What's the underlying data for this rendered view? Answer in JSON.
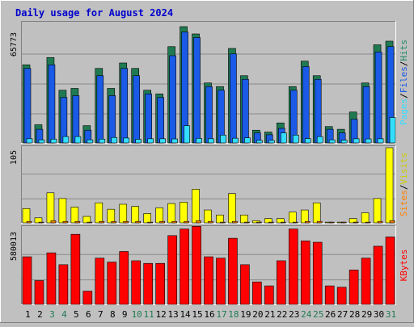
{
  "chart_data": {
    "type": "bar",
    "title": "Daily usage for August 2024",
    "categories": [
      "1",
      "2",
      "3",
      "4",
      "5",
      "6",
      "7",
      "8",
      "9",
      "10",
      "11",
      "12",
      "13",
      "14",
      "15",
      "16",
      "17",
      "18",
      "19",
      "20",
      "21",
      "22",
      "23",
      "24",
      "25",
      "26",
      "27",
      "28",
      "29",
      "30",
      "31"
    ],
    "weekend_days": [
      "3",
      "4",
      "10",
      "11",
      "17",
      "18",
      "24",
      "25",
      "31"
    ],
    "panels": {
      "hits": {
        "max_label": "65773",
        "ymax": 65773,
        "axis_labels": [
          "Pages",
          "/",
          "Files",
          "/",
          "Hits"
        ],
        "series": [
          {
            "name": "Hits",
            "color": "#1f7a52",
            "values": [
              43000,
              10000,
              47000,
              29000,
              30000,
              9500,
              41000,
              30000,
              44000,
              41000,
              29000,
              27000,
              53000,
              64000,
              60000,
              33000,
              31000,
              52000,
              37000,
              7000,
              6000,
              11000,
              31000,
              45000,
              37000,
              9000,
              7500,
              17000,
              33000,
              54000,
              56000
            ]
          },
          {
            "name": "Files",
            "color": "#1a5ae6",
            "values": [
              41000,
              7500,
              43000,
              25000,
              26000,
              7000,
              37000,
              26000,
              41000,
              37000,
              27000,
              25000,
              48000,
              61000,
              58000,
              31000,
              29000,
              49000,
              35000,
              5500,
              4500,
              8000,
              29000,
              42000,
              35000,
              7500,
              5500,
              13000,
              31000,
              50000,
              53000
            ]
          },
          {
            "name": "Pages",
            "color": "#33ddff",
            "values": [
              2300,
              1700,
              2100,
              3500,
              3500,
              1700,
              2100,
              3000,
              2700,
              2000,
              2300,
              2300,
              2200,
              9500,
              2500,
              2300,
              4300,
              2600,
              2800,
              1400,
              1400,
              5500,
              4300,
              2400,
              3500,
              1700,
              1500,
              2300,
              2200,
              2300,
              14000
            ]
          }
        ]
      },
      "visits": {
        "max_label": "105",
        "ymax": 105,
        "axis_labels": [
          "Sites",
          "/",
          "Visits"
        ],
        "series": [
          {
            "name": "Visits",
            "color": "#ffff00",
            "values": [
              20,
              7,
              42,
              34,
              22,
              9,
              28,
              19,
              26,
              23,
              13,
              21,
              27,
              29,
              47,
              18,
              11,
              41,
              11,
              3,
              6,
              6,
              15,
              18,
              28,
              1,
              1,
              6,
              14,
              34,
              105
            ]
          },
          {
            "name": "Sites",
            "color": "#ff8000",
            "values": [
              2,
              1,
              3,
              2,
              2,
              1,
              2,
              2,
              2,
              2,
              1,
              2,
              2,
              2,
              3,
              2,
              1,
              2,
              1,
              1,
              1,
              1,
              1,
              2,
              2,
              1,
              1,
              1,
              1,
              2,
              3
            ]
          }
        ]
      },
      "kbytes": {
        "max_label": "580013",
        "ymax": 580013,
        "axis_labels": [
          "KBytes"
        ],
        "series": [
          {
            "name": "KBytes",
            "color": "#ff0000",
            "values": [
              360000,
              180000,
              390000,
              300000,
              530000,
              100000,
              350000,
              320000,
              400000,
              330000,
              310000,
              310000,
              520000,
              570000,
              590000,
              360000,
              350000,
              500000,
              300000,
              170000,
              140000,
              330000,
              570000,
              480000,
              470000,
              140000,
              130000,
              260000,
              350000,
              440000,
              510000
            ]
          }
        ]
      }
    }
  }
}
